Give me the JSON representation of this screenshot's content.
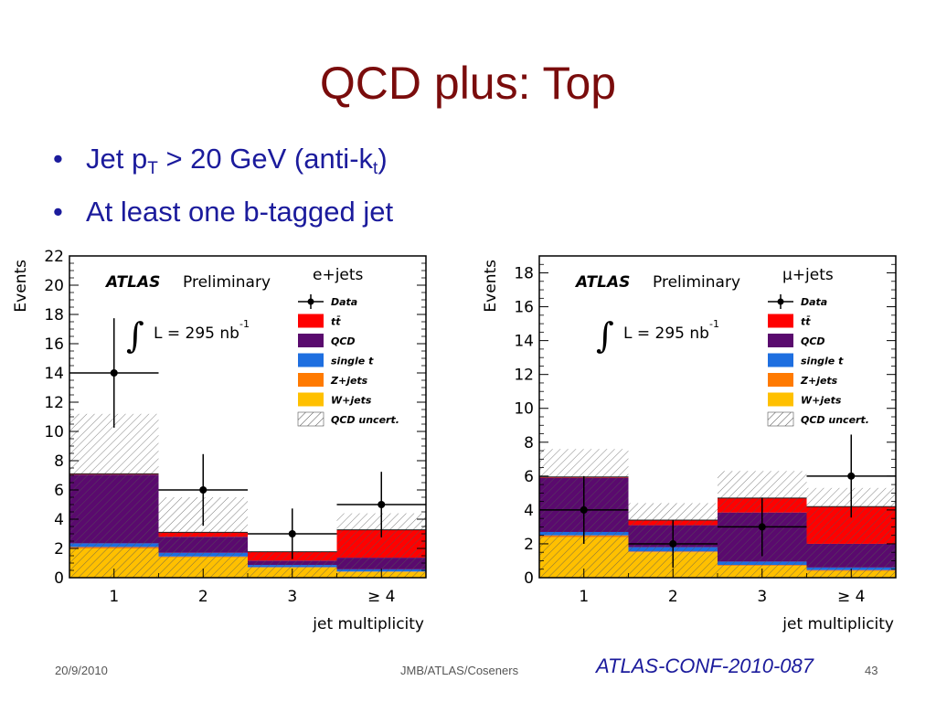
{
  "slide": {
    "title": "QCD plus: Top",
    "bullet1": {
      "a": "Jet p",
      "b": "T",
      "c": " > 20 GeV (anti-k",
      "d": "t",
      "e": ")"
    },
    "bullet2": "At least one b-tagged jet",
    "footer_date": "20/9/2010",
    "footer_center": "JMB/ATLAS/Coseners",
    "reference": "ATLAS-CONF-2010-087",
    "page_number": "43"
  },
  "colors": {
    "title": "#7a0c0c",
    "bullets": "#1b1b9c",
    "ttbar": "#ff0000",
    "qcd": "#5a0a6e",
    "single_t": "#1e6fe0",
    "zjets": "#ff7a00",
    "wjets": "#ffc000"
  },
  "chart_data": [
    {
      "type": "bar",
      "stacked": true,
      "experiment": "ATLAS",
      "status": "Preliminary",
      "channel": "e+jets",
      "lumi_text": "L = 295 nb",
      "lumi_exp": "-1",
      "xlabel": "jet multiplicity",
      "ylabel": "Events",
      "categories": [
        "1",
        "2",
        "3",
        "≥ 4"
      ],
      "ylim": [
        0,
        22
      ],
      "yticks": [
        0,
        2,
        4,
        6,
        8,
        10,
        12,
        14,
        16,
        18,
        20,
        22
      ],
      "legend_placement": "top-right",
      "legend": [
        "Data",
        "tt̄",
        "QCD",
        "single t",
        "Z+jets",
        "W+jets",
        "QCD uncert."
      ],
      "series": [
        {
          "name": "W+jets",
          "color": "#ffc000",
          "values": [
            2.0,
            1.4,
            0.7,
            0.4
          ]
        },
        {
          "name": "Z+jets",
          "color": "#ff7a00",
          "values": [
            0.1,
            0.05,
            0.02,
            0.02
          ]
        },
        {
          "name": "single t",
          "color": "#1e6fe0",
          "values": [
            0.25,
            0.25,
            0.15,
            0.15
          ]
        },
        {
          "name": "QCD",
          "color": "#5a0a6e",
          "values": [
            4.7,
            1.1,
            0.3,
            0.8
          ]
        },
        {
          "name": "tt̄",
          "color": "#ff0000",
          "values": [
            0.05,
            0.3,
            0.6,
            1.9
          ]
        }
      ],
      "qcd_uncert_top": [
        11.2,
        5.5,
        1.8,
        4.4
      ],
      "data": {
        "values": [
          14,
          6,
          3,
          5
        ],
        "errors": [
          3.74,
          2.45,
          1.73,
          2.24
        ]
      }
    },
    {
      "type": "bar",
      "stacked": true,
      "experiment": "ATLAS",
      "status": "Preliminary",
      "channel": "μ+jets",
      "lumi_text": "L = 295 nb",
      "lumi_exp": "-1",
      "xlabel": "jet multiplicity",
      "ylabel": "Events",
      "categories": [
        "1",
        "2",
        "3",
        "≥ 4"
      ],
      "ylim": [
        0,
        19
      ],
      "yticks": [
        0,
        2,
        4,
        6,
        8,
        10,
        12,
        14,
        16,
        18
      ],
      "legend_placement": "top-right",
      "legend": [
        "Data",
        "tt̄",
        "QCD",
        "single t",
        "Z+jets",
        "W+jets",
        "QCD uncert."
      ],
      "series": [
        {
          "name": "W+jets",
          "color": "#ffc000",
          "values": [
            2.4,
            1.5,
            0.7,
            0.4
          ]
        },
        {
          "name": "Z+jets",
          "color": "#ff7a00",
          "values": [
            0.1,
            0.05,
            0.05,
            0.05
          ]
        },
        {
          "name": "single t",
          "color": "#1e6fe0",
          "values": [
            0.2,
            0.25,
            0.2,
            0.15
          ]
        },
        {
          "name": "QCD",
          "color": "#5a0a6e",
          "values": [
            3.2,
            1.3,
            2.9,
            1.4
          ]
        },
        {
          "name": "tt̄",
          "color": "#ff0000",
          "values": [
            0.05,
            0.3,
            0.85,
            2.2
          ]
        }
      ],
      "qcd_uncert_top": [
        7.6,
        4.4,
        6.3,
        5.3
      ],
      "data": {
        "values": [
          4,
          2,
          3,
          6
        ],
        "errors": [
          2.0,
          1.41,
          1.73,
          2.45
        ]
      }
    }
  ]
}
